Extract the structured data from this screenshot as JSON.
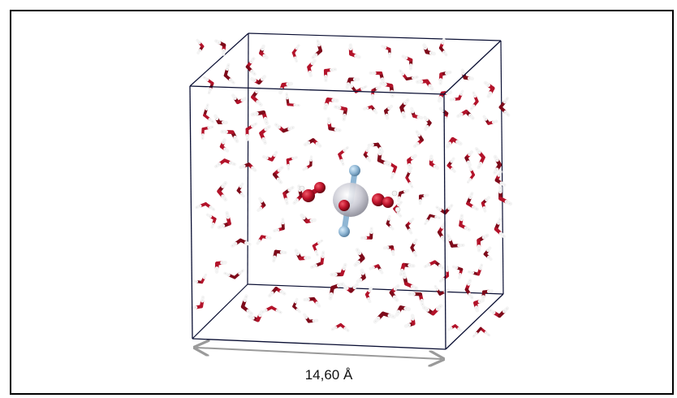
{
  "figure": {
    "dimension_label": "14,60 Å",
    "colors": {
      "oxygen": "#b3132a",
      "oxygen_dark": "#7e0a1a",
      "hydrogen": "#f4f4f4",
      "hydrogen_stroke": "#c9c9c9",
      "solute_light": "#8fb6d4",
      "solute_center": "#c8c8d2",
      "box_edge": "#0a0f33",
      "arrow": "#9a9a9a"
    },
    "molecules": {
      "water": "water-molecule",
      "solute": "solute-complex"
    }
  }
}
